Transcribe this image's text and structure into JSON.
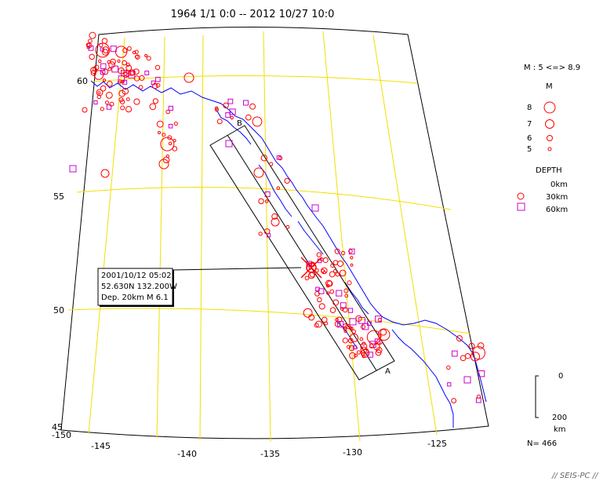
{
  "title": "1964 1/1 0:0 -- 2012 10/27 10:0",
  "colors": {
    "quake": "#ff0000",
    "deep_quake": "#cc00cc",
    "coast": "#0000ff",
    "graticule": "#f0e000",
    "frame": "#000000"
  },
  "lat_labels": [
    "60",
    "55",
    "50",
    "45"
  ],
  "lon_labels": [
    "-150",
    "-145",
    "-140",
    "-135",
    "-130",
    "-125"
  ],
  "section": {
    "label_a": "A",
    "label_b": "B"
  },
  "info_box": {
    "line1": "2001/10/12 05:02",
    "line2": "52.630N  132.200W",
    "line3": "Dep. 20km    M 6.1"
  },
  "legend": {
    "mag_range": "M : 5 <=> 8.9",
    "mag_title": "M",
    "mags": [
      "8",
      "7",
      "6",
      "5"
    ],
    "depth_title": "DEPTH",
    "depths": [
      "0km",
      "30km",
      "60km"
    ],
    "scale_top": "0",
    "scale_bottom": "200",
    "scale_unit": "km",
    "count": "N= 466"
  },
  "footer": "// SEIS-PC //"
}
